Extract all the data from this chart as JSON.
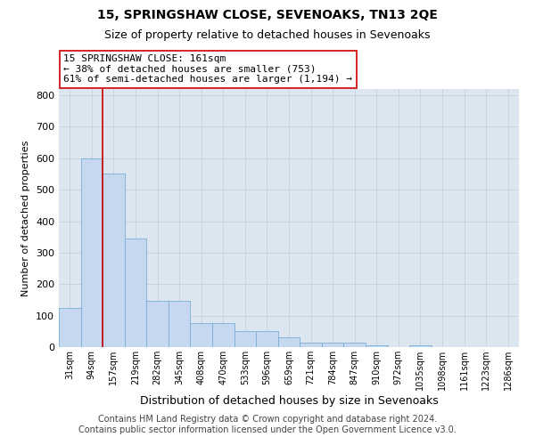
{
  "title": "15, SPRINGSHAW CLOSE, SEVENOAKS, TN13 2QE",
  "subtitle": "Size of property relative to detached houses in Sevenoaks",
  "xlabel": "Distribution of detached houses by size in Sevenoaks",
  "ylabel": "Number of detached properties",
  "categories": [
    "31sqm",
    "94sqm",
    "157sqm",
    "219sqm",
    "282sqm",
    "345sqm",
    "408sqm",
    "470sqm",
    "533sqm",
    "596sqm",
    "659sqm",
    "721sqm",
    "784sqm",
    "847sqm",
    "910sqm",
    "972sqm",
    "1035sqm",
    "1098sqm",
    "1161sqm",
    "1223sqm",
    "1286sqm"
  ],
  "values": [
    125,
    600,
    550,
    345,
    148,
    148,
    75,
    75,
    50,
    50,
    30,
    13,
    13,
    13,
    5,
    0,
    5,
    0,
    0,
    0,
    0
  ],
  "bar_color": "#c5d8ef",
  "bar_edge_color": "#7aadd4",
  "vline_x_idx": 2,
  "vline_color": "#cc0000",
  "annotation_text": "15 SPRINGSHAW CLOSE: 161sqm\n← 38% of detached houses are smaller (753)\n61% of semi-detached houses are larger (1,194) →",
  "annotation_box_color": "white",
  "annotation_box_edge": "#cc0000",
  "ylim": [
    0,
    820
  ],
  "yticks": [
    0,
    100,
    200,
    300,
    400,
    500,
    600,
    700,
    800
  ],
  "grid_color": "#c8d0da",
  "bg_color": "#dce6f0",
  "footer": "Contains HM Land Registry data © Crown copyright and database right 2024.\nContains public sector information licensed under the Open Government Licence v3.0.",
  "title_fontsize": 10,
  "subtitle_fontsize": 9,
  "xlabel_fontsize": 9,
  "ylabel_fontsize": 8,
  "footer_fontsize": 7
}
